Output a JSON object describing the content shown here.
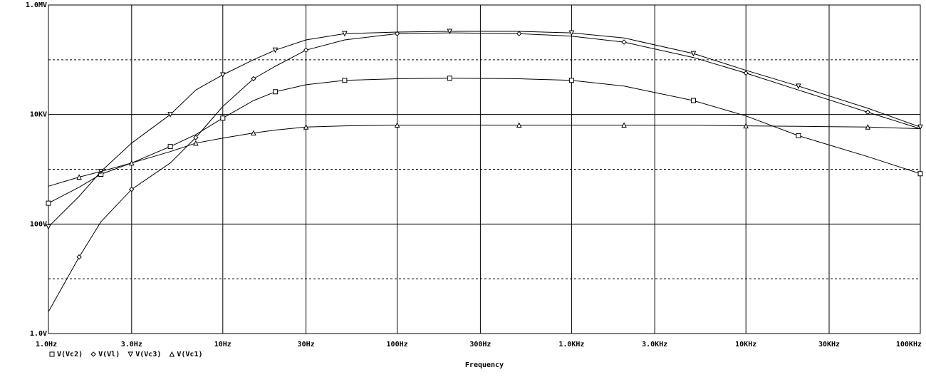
{
  "chart_data": {
    "type": "line",
    "x_label": "Frequency",
    "xlog": true,
    "ylog": true,
    "grid": true,
    "x": [
      1,
      1.5,
      2,
      3,
      5,
      7,
      10,
      15,
      20,
      30,
      50,
      100,
      200,
      500,
      1000,
      2000,
      5000,
      10000,
      20000,
      50000,
      100000
    ],
    "series": [
      {
        "name": "V(Vc2)",
        "marker": "square",
        "color": "#000000",
        "values": [
          240,
          470,
          810,
          1300,
          2600,
          4300,
          8600,
          18000,
          26000,
          35000,
          42000,
          45000,
          46000,
          45000,
          42000,
          33000,
          18000,
          9400,
          4100,
          1700,
          830
        ]
      },
      {
        "name": "V(Vl)",
        "marker": "diamond",
        "color": "#000000",
        "values": [
          2.5,
          25,
          110,
          430,
          1300,
          3800,
          14000,
          45000,
          76000,
          150000,
          230000,
          300000,
          310000,
          300000,
          270000,
          210000,
          110000,
          57000,
          28000,
          11000,
          5500
        ]
      },
      {
        "name": "V(Vc3)",
        "marker": "triangle-down",
        "color": "#000000",
        "values": [
          89,
          320,
          910,
          3000,
          10000,
          28000,
          53000,
          100000,
          150000,
          230000,
          300000,
          320000,
          330000,
          330000,
          310000,
          250000,
          130000,
          64000,
          33000,
          13000,
          5900
        ]
      },
      {
        "name": "V(Vc1)",
        "marker": "triangle-up",
        "color": "#000000",
        "values": [
          490,
          720,
          910,
          1300,
          2100,
          3000,
          3700,
          4600,
          5200,
          5900,
          6200,
          6400,
          6400,
          6400,
          6400,
          6400,
          6400,
          6200,
          6100,
          5900,
          5500
        ]
      }
    ],
    "xlim": [
      1,
      100000
    ],
    "xticks": [
      {
        "value": 1,
        "label": "1.0Hz"
      },
      {
        "value": 3,
        "label": "3.0Hz"
      },
      {
        "value": 10,
        "label": "10Hz"
      },
      {
        "value": 30,
        "label": "30Hz"
      },
      {
        "value": 100,
        "label": "100Hz"
      },
      {
        "value": 300,
        "label": "300Hz"
      },
      {
        "value": 1000,
        "label": "1.0KHz"
      },
      {
        "value": 3000,
        "label": "3.0KHz"
      },
      {
        "value": 10000,
        "label": "10KHz"
      },
      {
        "value": 30000,
        "label": "30KHz"
      },
      {
        "value": 100000,
        "label": "100KHz"
      }
    ],
    "ylim": [
      1,
      1000000
    ],
    "yticks": [
      {
        "value": 1,
        "label": "1.0V"
      },
      {
        "value": 100,
        "label": "100V"
      },
      {
        "value": 10000,
        "label": "10KV"
      },
      {
        "value": 1000000,
        "label": "1.0MV"
      }
    ],
    "y_minor_ticks": [
      10,
      1000,
      100000
    ]
  }
}
